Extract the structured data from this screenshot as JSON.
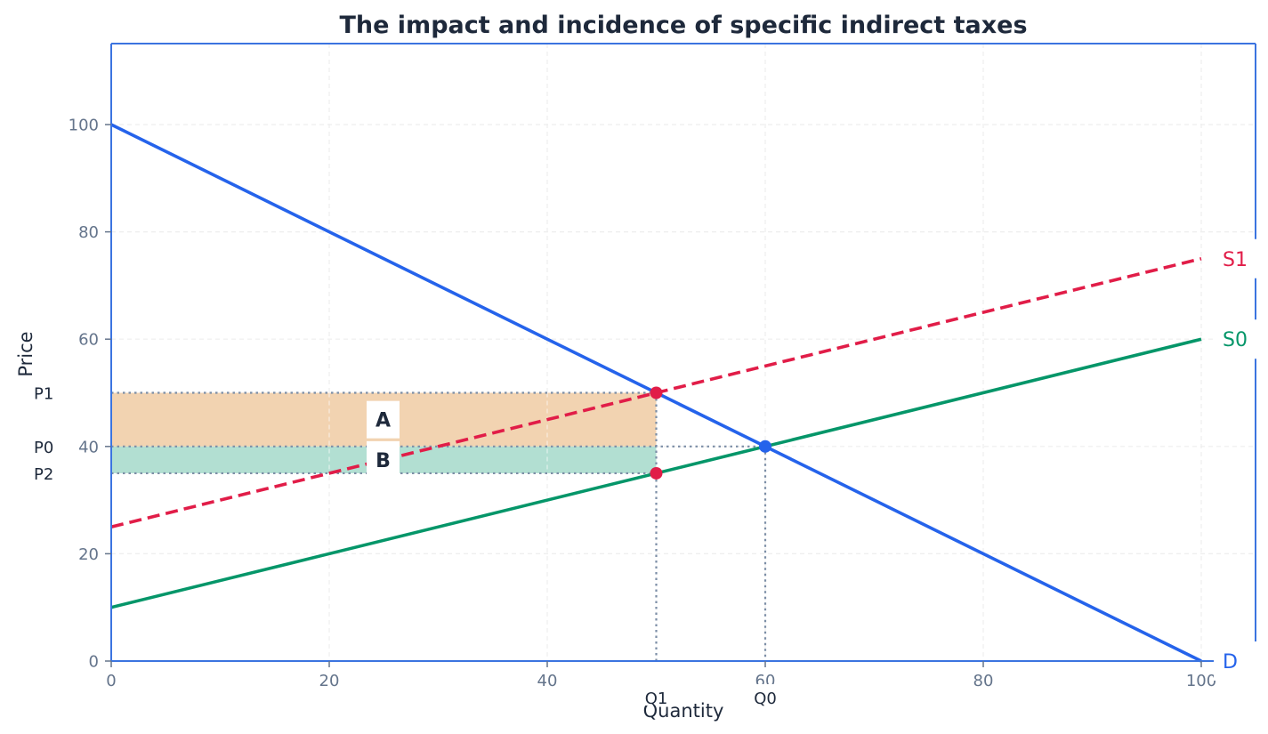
{
  "chart_data": {
    "type": "line",
    "title": "The impact and incidence of specific indirect taxes",
    "xlabel": "Quantity",
    "ylabel": "Price",
    "xlim": [
      0,
      105
    ],
    "ylim": [
      0,
      115
    ],
    "x_ticks": [
      0,
      20,
      40,
      60,
      80,
      100
    ],
    "y_ticks": [
      0,
      20,
      40,
      60,
      80,
      100
    ],
    "grid": true,
    "series": [
      {
        "name": "D",
        "label": "D",
        "color": "#2563eb",
        "style": "solid",
        "x": [
          0,
          100
        ],
        "y": [
          100,
          0
        ]
      },
      {
        "name": "S0",
        "label": "S0",
        "color": "#059669",
        "style": "solid",
        "x": [
          0,
          100
        ],
        "y": [
          10,
          60
        ]
      },
      {
        "name": "S1",
        "label": "S1",
        "color": "#e11d48",
        "style": "dashed",
        "x": [
          0,
          100
        ],
        "y": [
          25,
          75
        ]
      }
    ],
    "points": [
      {
        "name": "original-equilibrium",
        "x": 60,
        "y": 40,
        "color": "#2563eb"
      },
      {
        "name": "consumer-price-point",
        "x": 50,
        "y": 50,
        "color": "#e11d48"
      },
      {
        "name": "producer-price-point",
        "x": 50,
        "y": 35,
        "color": "#e11d48"
      }
    ],
    "shaded_areas": [
      {
        "label": "A",
        "x": [
          0,
          50
        ],
        "y": [
          40,
          50
        ],
        "color": "#f2d3b1",
        "meaning": "consumer tax incidence"
      },
      {
        "label": "B",
        "x": [
          0,
          50
        ],
        "y": [
          35,
          40
        ],
        "color": "#b2dfd2",
        "meaning": "producer tax incidence"
      }
    ],
    "reference_lines": {
      "price_labels": [
        {
          "label": "P1",
          "value": 50
        },
        {
          "label": "P0",
          "value": 40
        },
        {
          "label": "P2",
          "value": 35
        }
      ],
      "quantity_labels": [
        {
          "label": "Q1",
          "value": 50
        },
        {
          "label": "Q0",
          "value": 60
        }
      ]
    }
  },
  "colors": {
    "spine": "#3b74e0",
    "tick_text": "#64748b",
    "text_dark": "#1e293b",
    "grid": "#e5e7eb",
    "guide": "#7c8ea6"
  }
}
